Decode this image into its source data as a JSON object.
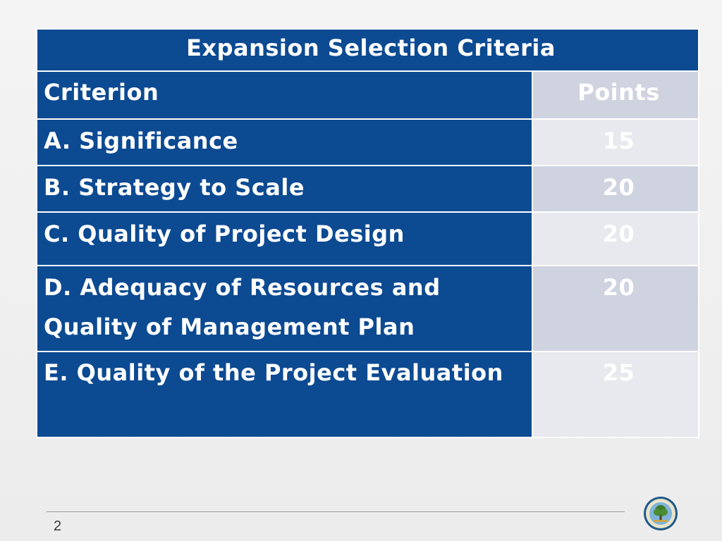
{
  "table": {
    "title": "Expansion Selection Criteria",
    "header": {
      "criterion": "Criterion",
      "points": "Points"
    },
    "rows": [
      {
        "criterion": "A. Significance",
        "points": "15"
      },
      {
        "criterion": "B. Strategy to Scale",
        "points": "20"
      },
      {
        "criterion": "C. Quality of Project Design",
        "points": "20"
      },
      {
        "criterion": "D. Adequacy of Resources and Quality of Management Plan",
        "points": "20"
      },
      {
        "criterion": "E. Quality of the Project Evaluation",
        "points": "25"
      }
    ]
  },
  "footer": {
    "page_number": "2"
  },
  "colors": {
    "cell_blue": "#0c4a92",
    "points_shade_dark": "#cfd3e0",
    "points_shade_light": "#e8e9ee"
  },
  "icons": {
    "seal": "department-of-education-seal-icon"
  }
}
